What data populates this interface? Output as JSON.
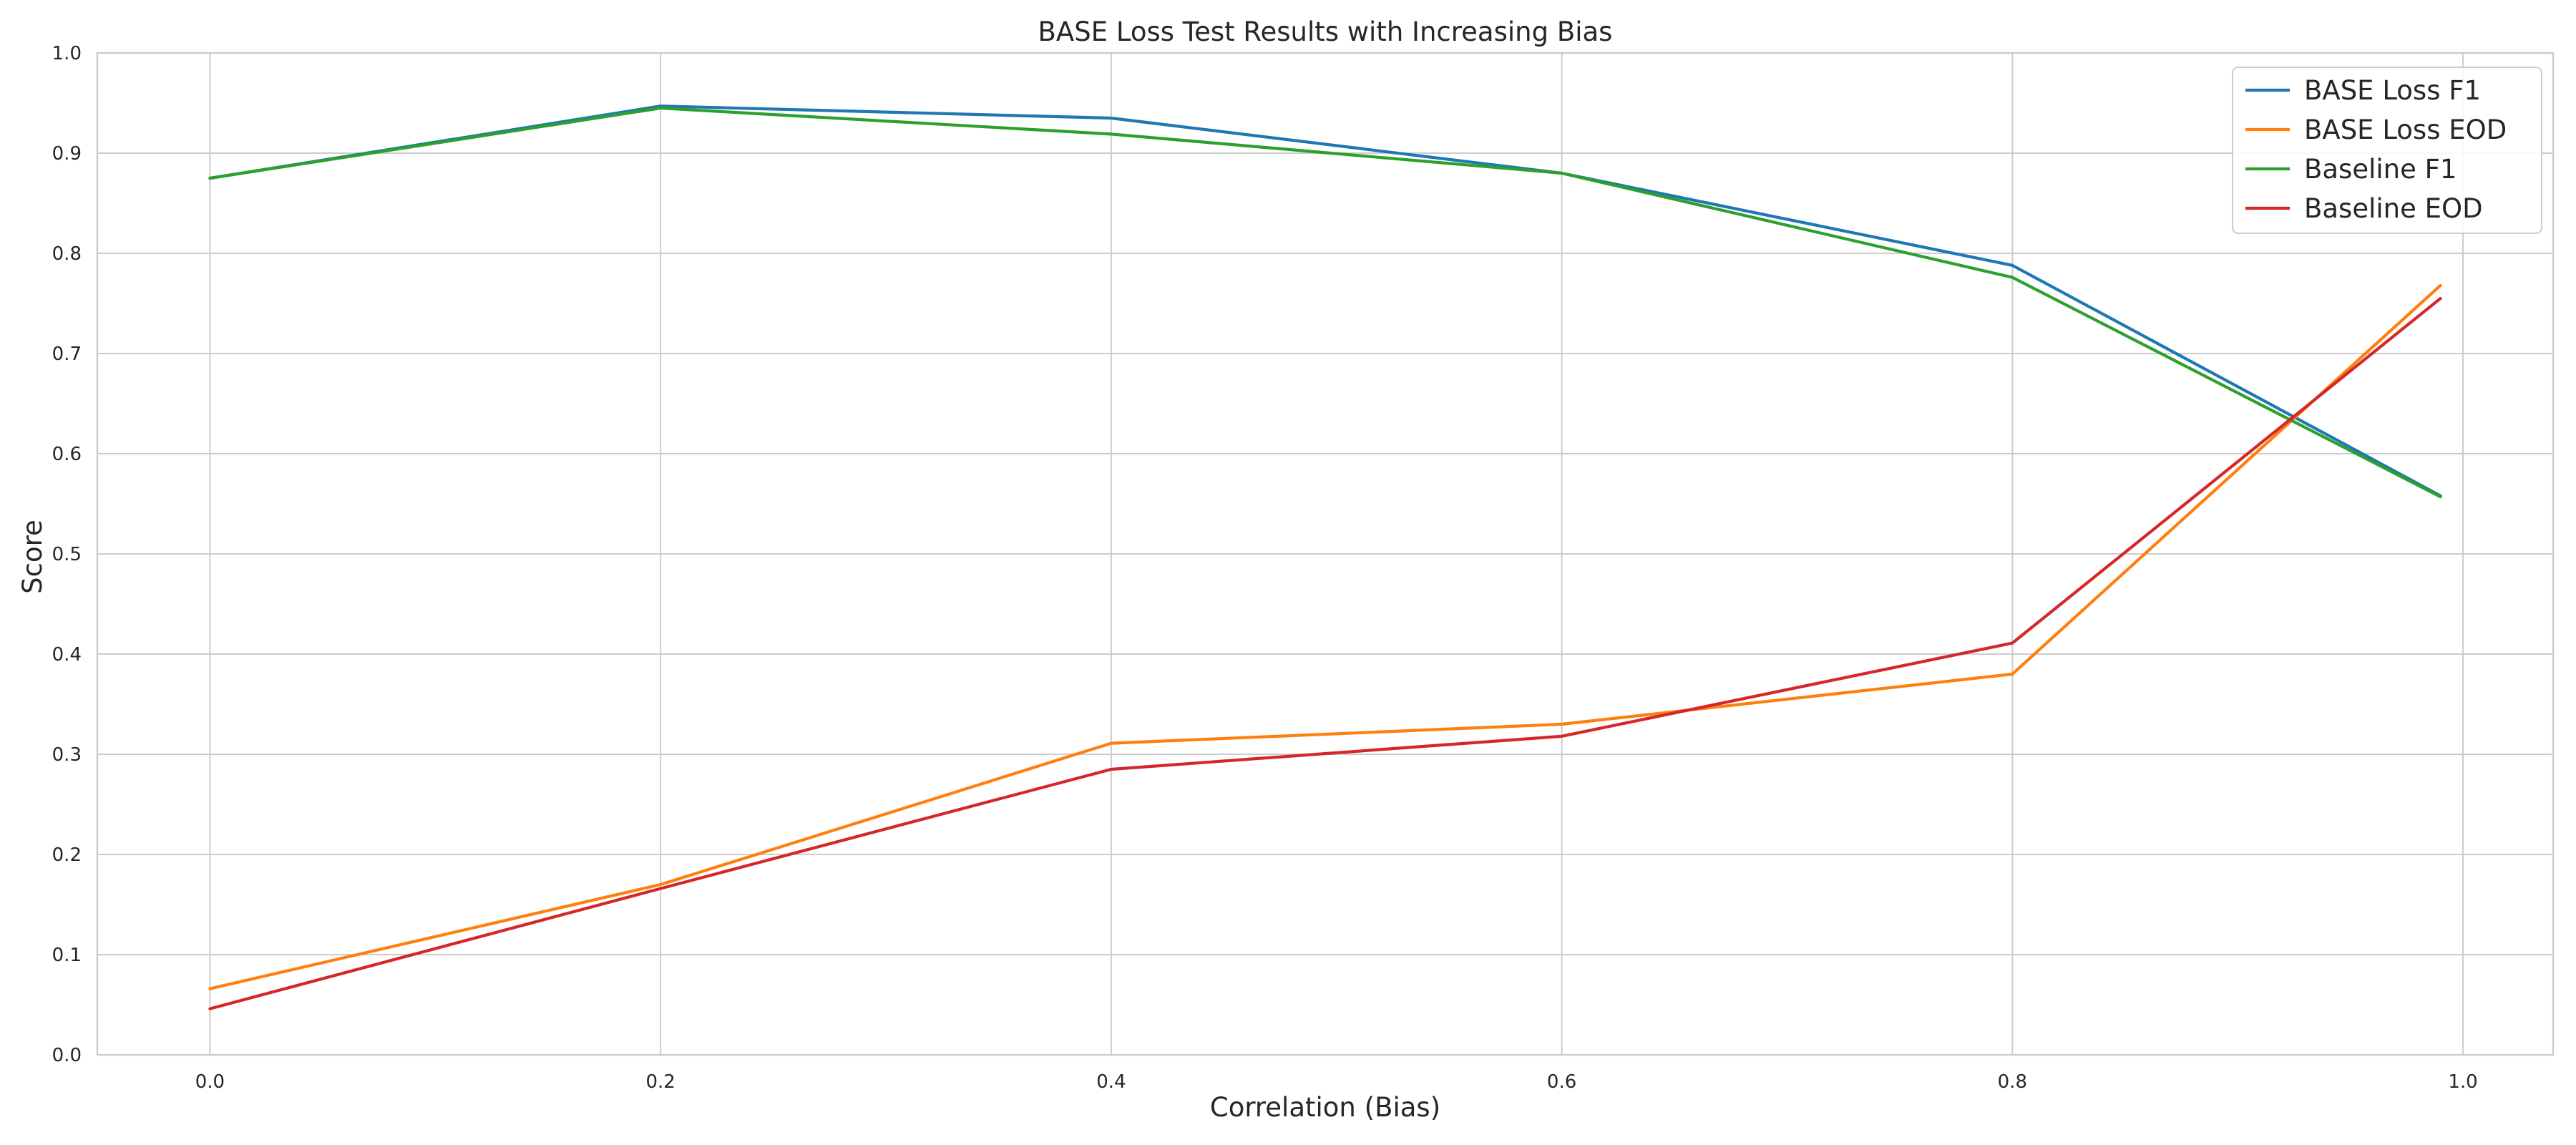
{
  "chart_data": {
    "type": "line",
    "title": "BASE Loss Test Results with Increasing Bias",
    "xlabel": "Correlation (Bias)",
    "ylabel": "Score",
    "xlim": [
      -0.05,
      1.04
    ],
    "ylim": [
      0.0,
      1.0
    ],
    "xticks": [
      0.0,
      0.2,
      0.4,
      0.6,
      0.8,
      1.0
    ],
    "xtick_labels": [
      "0.0",
      "0.2",
      "0.4",
      "0.6",
      "0.8",
      "1.0"
    ],
    "yticks": [
      0.0,
      0.1,
      0.2,
      0.3,
      0.4,
      0.5,
      0.6,
      0.7,
      0.8,
      0.9,
      1.0
    ],
    "ytick_labels": [
      "0.0",
      "0.1",
      "0.2",
      "0.3",
      "0.4",
      "0.5",
      "0.6",
      "0.7",
      "0.8",
      "0.9",
      "1.0"
    ],
    "grid": true,
    "legend_position": "top-right",
    "x": [
      0.0,
      0.2,
      0.4,
      0.6,
      0.8,
      0.99
    ],
    "series": [
      {
        "name": "BASE Loss F1",
        "color": "#1f77b4",
        "values": [
          0.875,
          0.947,
          0.935,
          0.88,
          0.788,
          0.558
        ]
      },
      {
        "name": "BASE Loss EOD",
        "color": "#ff7f0e",
        "values": [
          0.066,
          0.17,
          0.311,
          0.33,
          0.38,
          0.768
        ]
      },
      {
        "name": "Baseline F1",
        "color": "#2ca02c",
        "values": [
          0.875,
          0.945,
          0.919,
          0.88,
          0.776,
          0.557
        ]
      },
      {
        "name": "Baseline EOD",
        "color": "#d62728",
        "values": [
          0.046,
          0.166,
          0.285,
          0.318,
          0.411,
          0.755
        ]
      }
    ]
  }
}
